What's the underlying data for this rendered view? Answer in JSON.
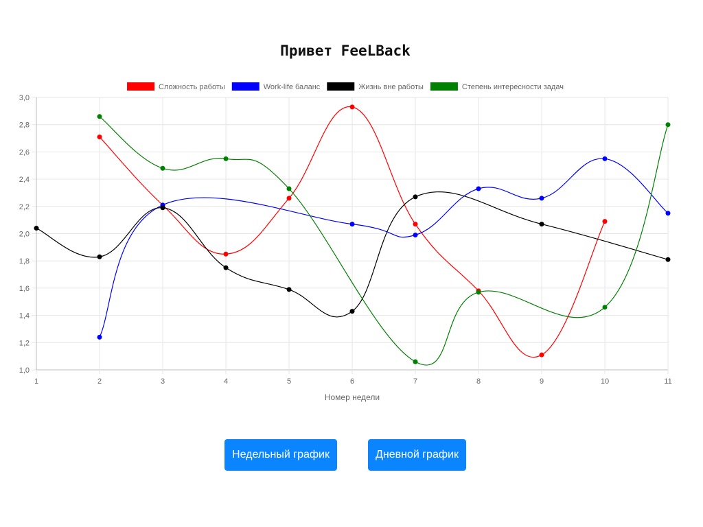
{
  "page": {
    "title": "Привет FeeLBack"
  },
  "buttons": {
    "weekly": "Недельный график",
    "daily": "Дневной график"
  },
  "chart_data": {
    "type": "line",
    "xlabel": "Номер недели",
    "ylabel": "",
    "x": [
      1,
      2,
      3,
      4,
      5,
      6,
      7,
      8,
      9,
      10,
      11
    ],
    "ylim": [
      1.0,
      3.0
    ],
    "yticks": [
      "1,0",
      "1,2",
      "1,4",
      "1,6",
      "1,8",
      "2,0",
      "2,2",
      "2,4",
      "2,6",
      "2,8",
      "3,0"
    ],
    "grid": true,
    "legend_position": "top",
    "series": [
      {
        "name": "Сложность работы",
        "color": "#ff0000",
        "values": [
          null,
          2.71,
          2.21,
          1.85,
          2.26,
          2.93,
          2.07,
          1.58,
          1.11,
          2.09,
          null
        ]
      },
      {
        "name": "Work-life баланс",
        "color": "#0000ff",
        "values": [
          null,
          1.24,
          2.21,
          null,
          null,
          2.07,
          1.99,
          2.33,
          2.26,
          2.55,
          2.15
        ]
      },
      {
        "name": "Жизнь вне работы",
        "color": "#000000",
        "values": [
          2.04,
          1.83,
          2.19,
          1.75,
          1.59,
          1.43,
          2.27,
          null,
          2.07,
          null,
          1.81
        ]
      },
      {
        "name": "Степень интересности задач",
        "color": "#008000",
        "values": [
          null,
          2.86,
          2.48,
          2.55,
          2.33,
          null,
          1.06,
          1.57,
          null,
          1.46,
          2.8
        ]
      }
    ]
  }
}
